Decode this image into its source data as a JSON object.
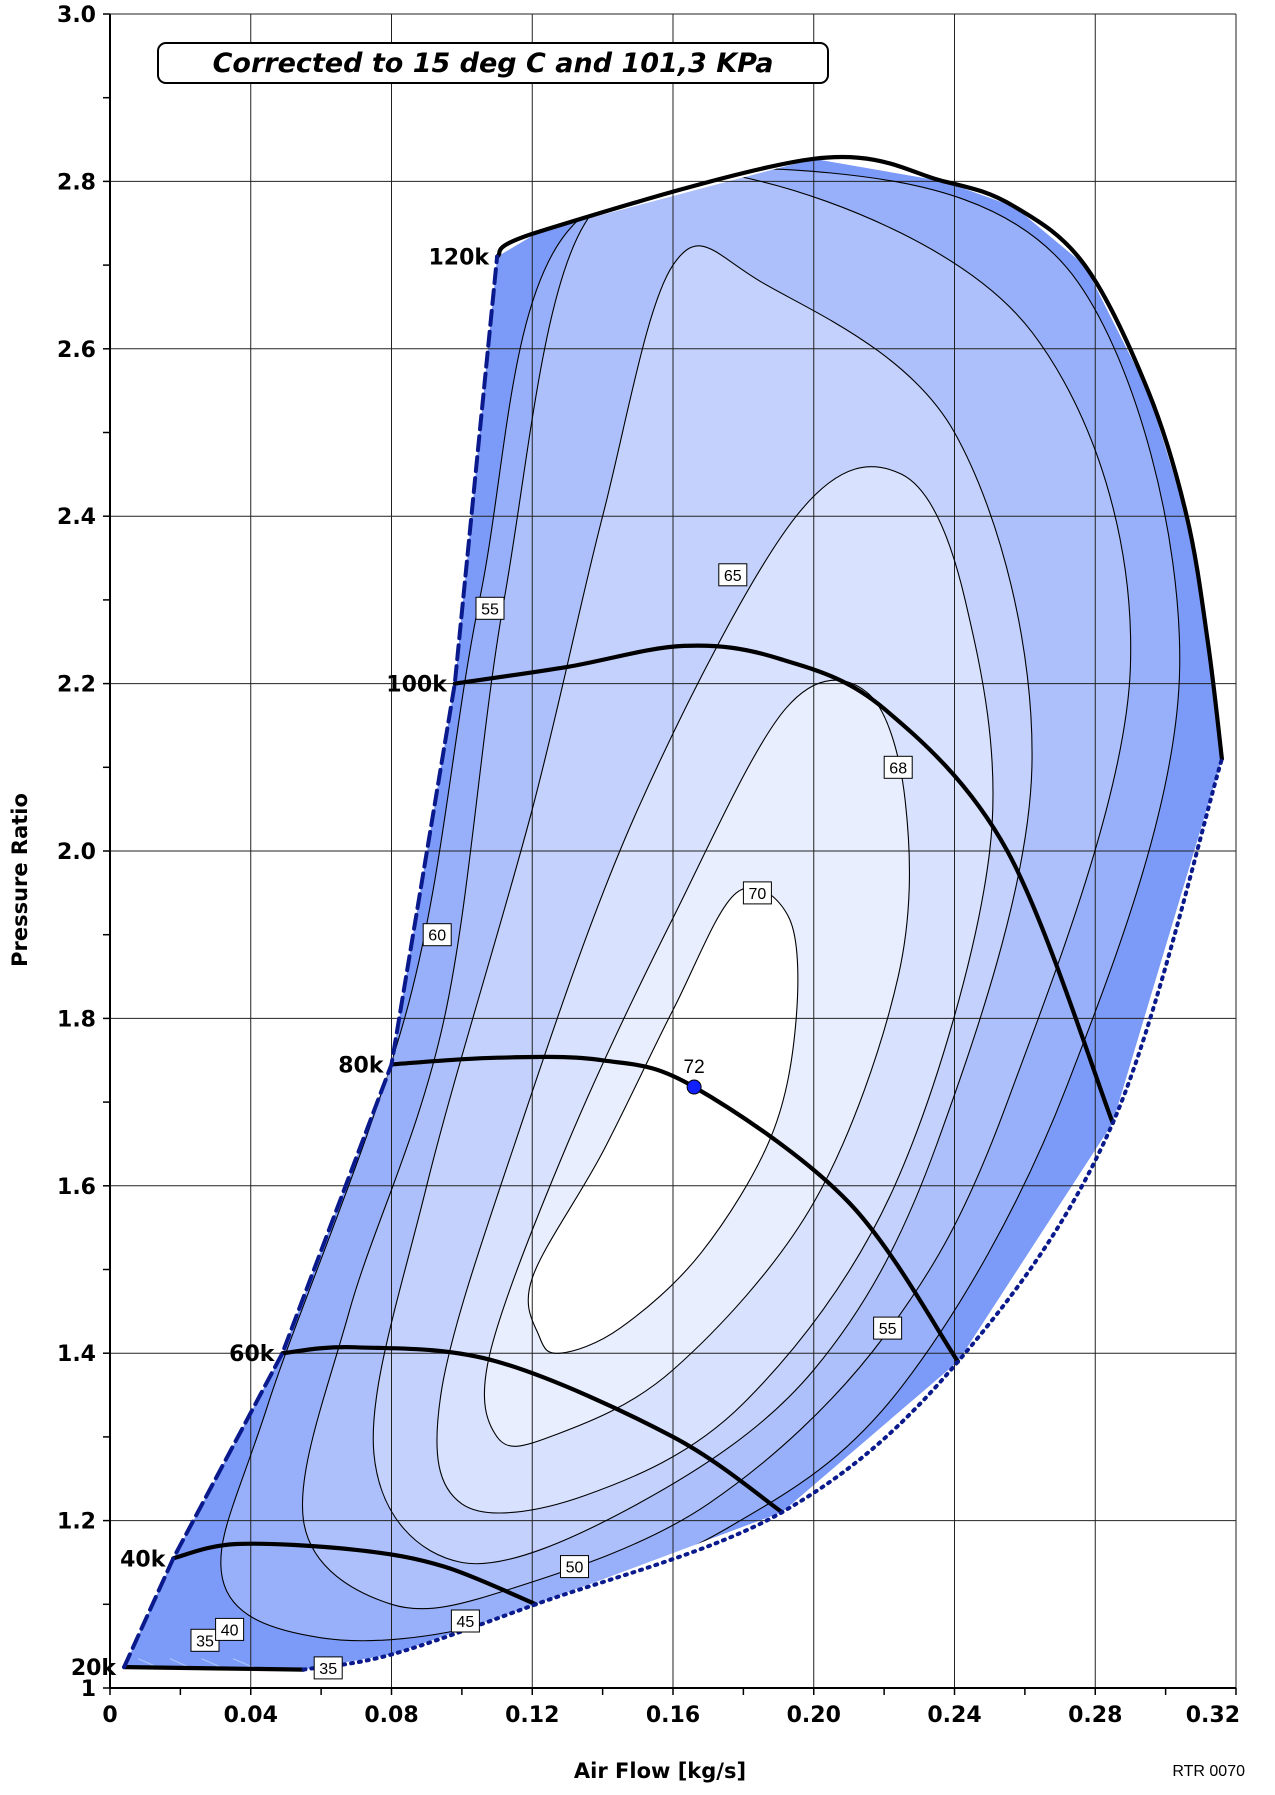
{
  "chart_data": {
    "type": "compressor_map",
    "title_note": "Corrected to 15 deg C and 101,3 KPa",
    "xlabel": "Air Flow [kg/s]",
    "ylabel": "Pressure Ratio",
    "source_code": "RTR 0070",
    "xlim": [
      0,
      0.32
    ],
    "ylim": [
      1.0,
      3.0
    ],
    "x_ticks": [
      "0",
      "0.04",
      "0.08",
      "0.12",
      "0.16",
      "0.20",
      "0.24",
      "0.28",
      "0.32"
    ],
    "y_ticks": [
      "1",
      "1.2",
      "1.4",
      "1.6",
      "1.8",
      "2.0",
      "2.2",
      "2.4",
      "2.6",
      "2.8",
      "3.0"
    ],
    "grid": true,
    "colors": {
      "outer": "#7c9af8",
      "band_50": "#98b0fa",
      "band_55": "#adc0fb",
      "band_60": "#c3d1fc",
      "band_65": "#d8e1fd",
      "band_68": "#e8eefe",
      "band_70": "#ffffff",
      "speed_line": "#000000",
      "surge_line": "#0a1a8c",
      "peak_point": "#1020ff"
    },
    "surge_line": [
      {
        "x": 0.004,
        "y": 1.025
      },
      {
        "x": 0.018,
        "y": 1.155
      },
      {
        "x": 0.049,
        "y": 1.4
      },
      {
        "x": 0.08,
        "y": 1.745
      },
      {
        "x": 0.098,
        "y": 2.2
      },
      {
        "x": 0.11,
        "y": 2.71
      }
    ],
    "choke_line": [
      {
        "x": 0.055,
        "y": 1.022
      },
      {
        "x": 0.08,
        "y": 1.04
      },
      {
        "x": 0.121,
        "y": 1.1
      },
      {
        "x": 0.191,
        "y": 1.21
      },
      {
        "x": 0.241,
        "y": 1.39
      },
      {
        "x": 0.285,
        "y": 1.675
      },
      {
        "x": 0.316,
        "y": 2.11
      }
    ],
    "speed_lines": [
      {
        "name": "20k",
        "points": [
          {
            "x": 0.004,
            "y": 1.025
          },
          {
            "x": 0.055,
            "y": 1.022
          }
        ]
      },
      {
        "name": "40k",
        "points": [
          {
            "x": 0.018,
            "y": 1.155
          },
          {
            "x": 0.036,
            "y": 1.172
          },
          {
            "x": 0.07,
            "y": 1.165
          },
          {
            "x": 0.095,
            "y": 1.145
          },
          {
            "x": 0.121,
            "y": 1.1
          }
        ]
      },
      {
        "name": "60k",
        "points": [
          {
            "x": 0.049,
            "y": 1.4
          },
          {
            "x": 0.07,
            "y": 1.407
          },
          {
            "x": 0.11,
            "y": 1.39
          },
          {
            "x": 0.16,
            "y": 1.3
          },
          {
            "x": 0.191,
            "y": 1.21
          }
        ]
      },
      {
        "name": "80k",
        "points": [
          {
            "x": 0.08,
            "y": 1.745
          },
          {
            "x": 0.11,
            "y": 1.753
          },
          {
            "x": 0.14,
            "y": 1.75
          },
          {
            "x": 0.166,
            "y": 1.718
          },
          {
            "x": 0.21,
            "y": 1.58
          },
          {
            "x": 0.241,
            "y": 1.39
          }
        ]
      },
      {
        "name": "100k",
        "points": [
          {
            "x": 0.098,
            "y": 2.2
          },
          {
            "x": 0.13,
            "y": 2.22
          },
          {
            "x": 0.163,
            "y": 2.245
          },
          {
            "x": 0.19,
            "y": 2.23
          },
          {
            "x": 0.22,
            "y": 2.17
          },
          {
            "x": 0.255,
            "y": 2.0
          },
          {
            "x": 0.285,
            "y": 1.675
          }
        ]
      },
      {
        "name": "120k",
        "points": [
          {
            "x": 0.11,
            "y": 2.71
          },
          {
            "x": 0.122,
            "y": 2.74
          },
          {
            "x": 0.2,
            "y": 2.827
          },
          {
            "x": 0.237,
            "y": 2.8
          },
          {
            "x": 0.257,
            "y": 2.77
          },
          {
            "x": 0.277,
            "y": 2.7
          },
          {
            "x": 0.295,
            "y": 2.55
          },
          {
            "x": 0.306,
            "y": 2.4
          },
          {
            "x": 0.312,
            "y": 2.25
          },
          {
            "x": 0.316,
            "y": 2.11
          }
        ]
      }
    ],
    "efficiency_islands": [
      {
        "label": "50",
        "points": [
          {
            "x": 0.06,
            "y": 1.06
          },
          {
            "x": 0.032,
            "y": 1.13
          },
          {
            "x": 0.045,
            "y": 1.34
          },
          {
            "x": 0.085,
            "y": 1.82
          },
          {
            "x": 0.105,
            "y": 2.3
          },
          {
            "x": 0.13,
            "y": 2.74
          },
          {
            "x": 0.205,
            "y": 2.81
          },
          {
            "x": 0.275,
            "y": 2.68
          },
          {
            "x": 0.304,
            "y": 2.22
          },
          {
            "x": 0.272,
            "y": 1.72
          },
          {
            "x": 0.225,
            "y": 1.36
          },
          {
            "x": 0.175,
            "y": 1.19
          },
          {
            "x": 0.11,
            "y": 1.08
          }
        ]
      },
      {
        "label": "55",
        "points": [
          {
            "x": 0.08,
            "y": 1.1
          },
          {
            "x": 0.055,
            "y": 1.2
          },
          {
            "x": 0.068,
            "y": 1.45
          },
          {
            "x": 0.095,
            "y": 1.8
          },
          {
            "x": 0.112,
            "y": 2.3
          },
          {
            "x": 0.135,
            "y": 2.75
          },
          {
            "x": 0.185,
            "y": 2.8
          },
          {
            "x": 0.262,
            "y": 2.62
          },
          {
            "x": 0.29,
            "y": 2.22
          },
          {
            "x": 0.255,
            "y": 1.7
          },
          {
            "x": 0.22,
            "y": 1.42
          },
          {
            "x": 0.17,
            "y": 1.22
          },
          {
            "x": 0.115,
            "y": 1.12
          }
        ]
      },
      {
        "label": "60",
        "points": [
          {
            "x": 0.1,
            "y": 1.15
          },
          {
            "x": 0.075,
            "y": 1.28
          },
          {
            "x": 0.09,
            "y": 1.6
          },
          {
            "x": 0.12,
            "y": 2.05
          },
          {
            "x": 0.14,
            "y": 2.4
          },
          {
            "x": 0.16,
            "y": 2.7
          },
          {
            "x": 0.185,
            "y": 2.68
          },
          {
            "x": 0.24,
            "y": 2.5
          },
          {
            "x": 0.262,
            "y": 2.1
          },
          {
            "x": 0.235,
            "y": 1.65
          },
          {
            "x": 0.2,
            "y": 1.38
          },
          {
            "x": 0.15,
            "y": 1.22
          }
        ]
      },
      {
        "label": "65",
        "points": [
          {
            "x": 0.1,
            "y": 1.22
          },
          {
            "x": 0.094,
            "y": 1.35
          },
          {
            "x": 0.115,
            "y": 1.65
          },
          {
            "x": 0.15,
            "y": 2.05
          },
          {
            "x": 0.195,
            "y": 2.4
          },
          {
            "x": 0.225,
            "y": 2.45
          },
          {
            "x": 0.243,
            "y": 2.3
          },
          {
            "x": 0.25,
            "y": 2.0
          },
          {
            "x": 0.223,
            "y": 1.6
          },
          {
            "x": 0.18,
            "y": 1.34
          },
          {
            "x": 0.135,
            "y": 1.23
          }
        ]
      },
      {
        "label": "68",
        "points": [
          {
            "x": 0.11,
            "y": 1.3
          },
          {
            "x": 0.108,
            "y": 1.4
          },
          {
            "x": 0.13,
            "y": 1.65
          },
          {
            "x": 0.16,
            "y": 1.92
          },
          {
            "x": 0.192,
            "y": 2.17
          },
          {
            "x": 0.215,
            "y": 2.19
          },
          {
            "x": 0.226,
            "y": 2.06
          },
          {
            "x": 0.224,
            "y": 1.85
          },
          {
            "x": 0.2,
            "y": 1.58
          },
          {
            "x": 0.16,
            "y": 1.38
          },
          {
            "x": 0.125,
            "y": 1.3
          }
        ]
      },
      {
        "label": "70",
        "points": [
          {
            "x": 0.122,
            "y": 1.42
          },
          {
            "x": 0.12,
            "y": 1.49
          },
          {
            "x": 0.14,
            "y": 1.64
          },
          {
            "x": 0.16,
            "y": 1.81
          },
          {
            "x": 0.178,
            "y": 1.95
          },
          {
            "x": 0.193,
            "y": 1.92
          },
          {
            "x": 0.195,
            "y": 1.8
          },
          {
            "x": 0.188,
            "y": 1.66
          },
          {
            "x": 0.168,
            "y": 1.52
          },
          {
            "x": 0.145,
            "y": 1.43
          },
          {
            "x": 0.128,
            "y": 1.4
          }
        ]
      }
    ],
    "contour_labels": [
      {
        "text": "35",
        "x": 0.027,
        "y": 1.057
      },
      {
        "text": "40",
        "x": 0.034,
        "y": 1.07
      },
      {
        "text": "35",
        "x": 0.062,
        "y": 1.024
      },
      {
        "text": "45",
        "x": 0.101,
        "y": 1.08
      },
      {
        "text": "50",
        "x": 0.132,
        "y": 1.145
      },
      {
        "text": "55",
        "x": 0.108,
        "y": 2.29
      },
      {
        "text": "60",
        "x": 0.093,
        "y": 1.9
      },
      {
        "text": "65",
        "x": 0.177,
        "y": 2.33
      },
      {
        "text": "68",
        "x": 0.224,
        "y": 2.1
      },
      {
        "text": "70",
        "x": 0.184,
        "y": 1.95
      },
      {
        "text": "55",
        "x": 0.221,
        "y": 1.43
      }
    ],
    "peak_point": {
      "label": "72",
      "x": 0.166,
      "y": 1.718
    }
  }
}
